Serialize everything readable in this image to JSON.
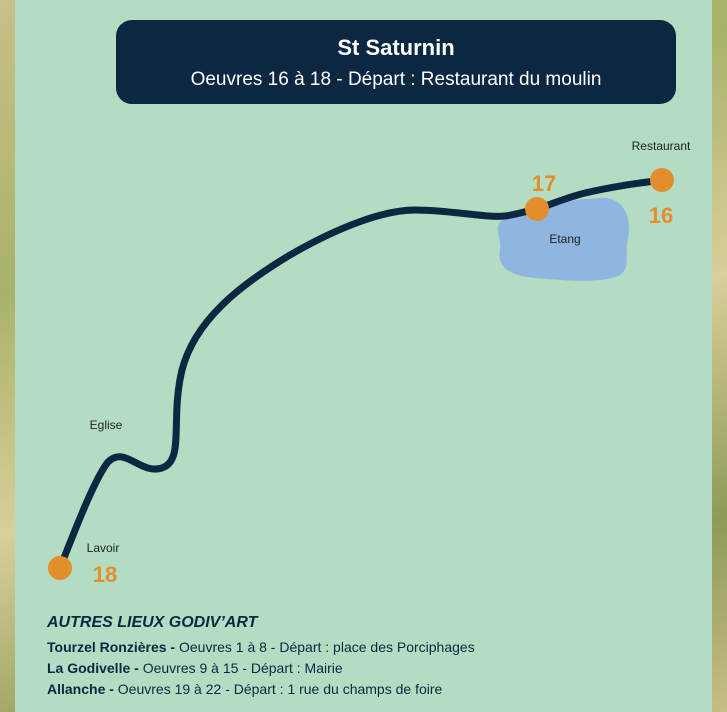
{
  "header": {
    "title": "St Saturnin",
    "subtitle": "Oeuvres 16 à 18 - Départ : Restaurant du moulin"
  },
  "places": [
    "Restaurant",
    "Etang",
    "Eglise",
    "Lavoir"
  ],
  "stops": [
    "16",
    "17",
    "18"
  ],
  "other_places": {
    "title": "AUTRES LIEUX GODIV’ART",
    "items": [
      {
        "name": "Tourzel Ronzières -",
        "detail": "Oeuvres 1 à 8 - Départ : place des Porciphages"
      },
      {
        "name": "La Godivelle -",
        "detail": "Oeuvres 9 à 15 - Départ : Mairie"
      },
      {
        "name": "Allanche -",
        "detail": "Oeuvres 19 à 22 - Départ : 1 rue du champs de foire"
      }
    ]
  }
}
